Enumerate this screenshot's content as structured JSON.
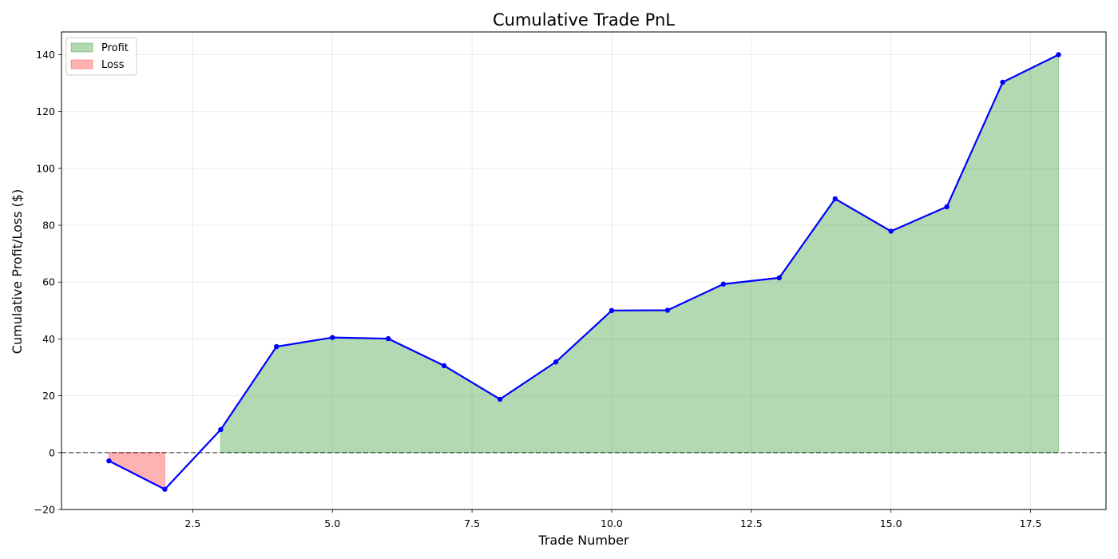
{
  "chart_data": {
    "type": "line",
    "title": "Cumulative Trade PnL",
    "xlabel": "Trade Number",
    "ylabel": "Cumulative Profit/Loss ($)",
    "x": [
      1,
      2,
      3,
      4,
      5,
      6,
      7,
      8,
      9,
      10,
      11,
      12,
      13,
      14,
      15,
      16,
      17,
      18
    ],
    "series": [
      {
        "values": [
          -2.9,
          -12.9,
          8.1,
          37.3,
          40.5,
          40.1,
          30.6,
          18.8,
          31.9,
          50.0,
          50.1,
          59.3,
          61.5,
          89.3,
          77.9,
          86.5,
          130.3,
          140.0
        ],
        "color": "#0000ff"
      }
    ],
    "fills": [
      {
        "name": "Profit",
        "color": "#008000",
        "alpha": 0.3
      },
      {
        "name": "Loss",
        "color": "#ff0000",
        "alpha": 0.3
      }
    ],
    "baseline": 0,
    "xlim": [
      0.15,
      18.85
    ],
    "ylim": [
      -20,
      148
    ],
    "xticks": [
      2.5,
      5.0,
      7.5,
      10.0,
      12.5,
      15.0,
      17.5
    ],
    "xtick_labels": [
      "2.5",
      "5.0",
      "7.5",
      "10.0",
      "12.5",
      "15.0",
      "17.5"
    ],
    "yticks": [
      -20,
      0,
      20,
      40,
      60,
      80,
      100,
      120,
      140
    ],
    "ytick_labels": [
      "−20",
      "0",
      "20",
      "40",
      "60",
      "80",
      "100",
      "120",
      "140"
    ],
    "grid": true,
    "legend": {
      "position": "top-left",
      "entries": [
        "Profit",
        "Loss"
      ]
    }
  }
}
